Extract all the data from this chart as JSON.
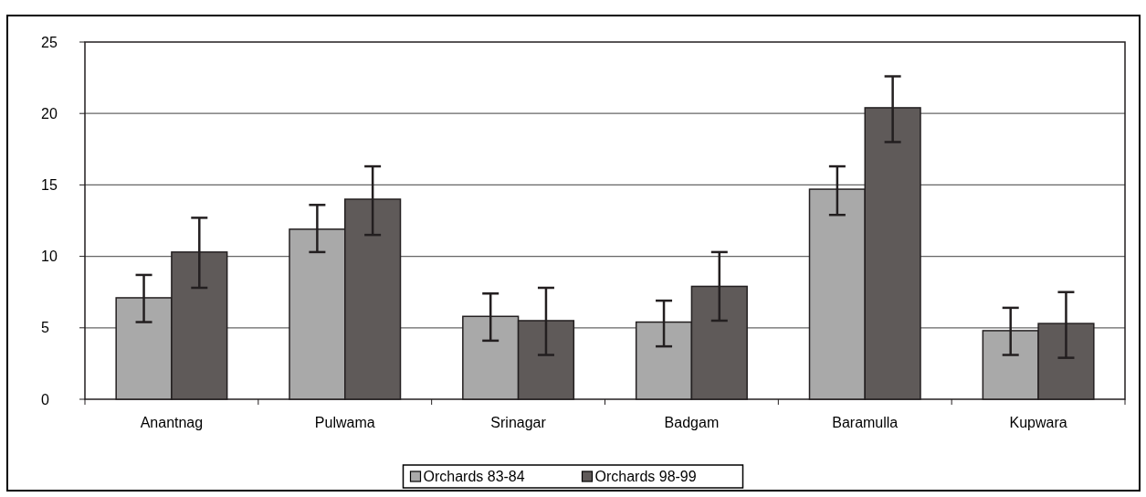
{
  "chart_data": {
    "type": "bar",
    "categories": [
      "Anantnag",
      "Pulwama",
      "Srinagar",
      "Badgam",
      "Baramulla",
      "Kupwara"
    ],
    "series": [
      {
        "name": "Orchards 83-84",
        "color": "#a9a9a9",
        "values": [
          7.1,
          11.9,
          5.8,
          5.4,
          14.7,
          4.8
        ],
        "errors": [
          [
            5.4,
            8.7
          ],
          [
            10.3,
            13.6
          ],
          [
            4.1,
            7.4
          ],
          [
            3.7,
            6.9
          ],
          [
            12.9,
            16.3
          ],
          [
            3.1,
            6.4
          ]
        ]
      },
      {
        "name": "Orchards 98-99",
        "color": "#5f5a59",
        "values": [
          10.3,
          14.0,
          5.5,
          7.9,
          20.4,
          5.3
        ],
        "errors": [
          [
            7.8,
            12.7
          ],
          [
            11.5,
            16.3
          ],
          [
            3.1,
            7.8
          ],
          [
            5.5,
            10.3
          ],
          [
            18.0,
            22.6
          ],
          [
            2.9,
            7.5
          ]
        ]
      }
    ],
    "ylim": [
      0,
      25
    ],
    "yticks": [
      0,
      5,
      10,
      15,
      20,
      25
    ],
    "grid": "y",
    "legend": "bottom"
  }
}
